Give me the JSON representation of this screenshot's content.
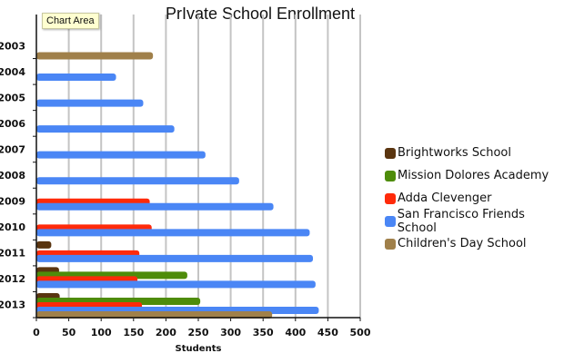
{
  "chart_data": {
    "type": "bar",
    "orientation": "horizontal",
    "title": "PrIvate School Enrollment",
    "xlabel": "Students",
    "ylabel": "",
    "xlim": [
      0,
      500
    ],
    "xticks": [
      "0",
      "50",
      "100",
      "150",
      "200",
      "250",
      "300",
      "350",
      "400",
      "450",
      "500"
    ],
    "categories": [
      "2003",
      "2004",
      "2005",
      "2006",
      "2007",
      "2008",
      "2009",
      "2010",
      "2011",
      "2012",
      "2013"
    ],
    "grid": true,
    "legend_position": "right",
    "series": [
      {
        "name": "Brightworks School",
        "color": "#5a3510",
        "values": [
          null,
          null,
          null,
          null,
          null,
          null,
          null,
          null,
          23,
          35,
          36
        ]
      },
      {
        "name": "Mission Dolores Academy",
        "color": "#4e8c0a",
        "values": [
          null,
          null,
          null,
          null,
          null,
          null,
          null,
          null,
          null,
          233,
          253
        ]
      },
      {
        "name": "Adda Clevenger",
        "color": "#ff2a0a",
        "values": [
          null,
          null,
          null,
          null,
          null,
          null,
          175,
          178,
          159,
          156,
          163
        ]
      },
      {
        "name": "San Francisco Friends School",
        "color": "#4a86f5",
        "values": [
          null,
          123,
          165,
          213,
          261,
          313,
          366,
          422,
          427,
          431,
          436
        ]
      },
      {
        "name": "Children's Day School",
        "color": "#a0804a",
        "values": [
          180,
          null,
          null,
          null,
          null,
          null,
          null,
          null,
          null,
          null,
          364
        ]
      }
    ]
  },
  "tooltip": "Chart Area"
}
